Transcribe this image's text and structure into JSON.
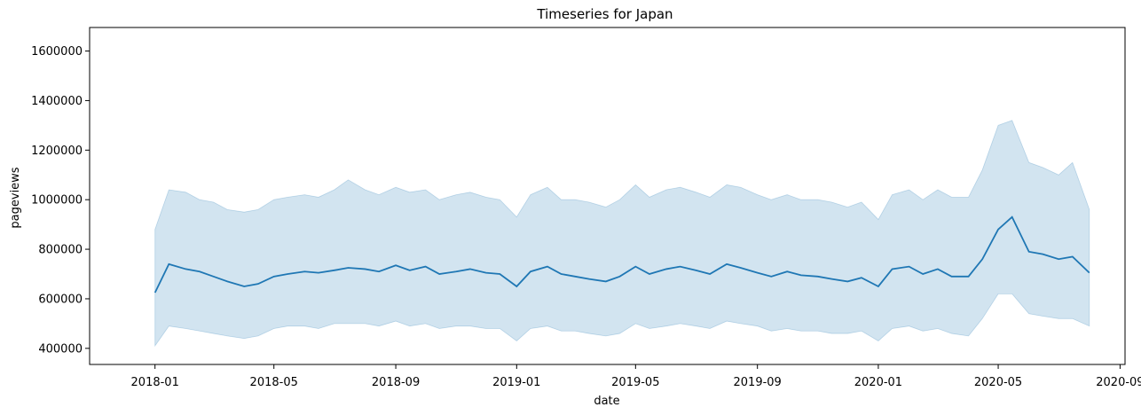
{
  "chart_data": {
    "type": "line",
    "title": "Timeseries for Japan",
    "xlabel": "date",
    "ylabel": "pageviews",
    "xlim": [
      "2017-10-27",
      "2020-09-06"
    ],
    "ylim": [
      335000,
      1695000
    ],
    "x_ticks": [
      "2018-01",
      "2018-05",
      "2018-09",
      "2019-01",
      "2019-05",
      "2019-09",
      "2020-01",
      "2020-05",
      "2020-09"
    ],
    "y_ticks": [
      400000,
      600000,
      800000,
      1000000,
      1200000,
      1400000,
      1600000
    ],
    "legend": "none",
    "grid": false,
    "colors": {
      "line": "#1f77b4",
      "band": "#1f77b4"
    },
    "series": [
      {
        "x": [
          "2018-01-01",
          "2018-01-15",
          "2018-02-01",
          "2018-02-15",
          "2018-03-01",
          "2018-03-15",
          "2018-04-01",
          "2018-04-15",
          "2018-05-01",
          "2018-05-15",
          "2018-06-01",
          "2018-06-15",
          "2018-07-01",
          "2018-07-15",
          "2018-08-01",
          "2018-08-15",
          "2018-09-01",
          "2018-09-15",
          "2018-10-01",
          "2018-10-15",
          "2018-11-01",
          "2018-11-15",
          "2018-12-01",
          "2018-12-15",
          "2019-01-01",
          "2019-01-15",
          "2019-02-01",
          "2019-02-15",
          "2019-03-01",
          "2019-03-15",
          "2019-04-01",
          "2019-04-15",
          "2019-05-01",
          "2019-05-15",
          "2019-06-01",
          "2019-06-15",
          "2019-07-01",
          "2019-07-15",
          "2019-08-01",
          "2019-08-15",
          "2019-09-01",
          "2019-09-15",
          "2019-10-01",
          "2019-10-15",
          "2019-11-01",
          "2019-11-15",
          "2019-12-01",
          "2019-12-15",
          "2020-01-01",
          "2020-01-15",
          "2020-02-01",
          "2020-02-15",
          "2020-03-01",
          "2020-03-15",
          "2020-04-01",
          "2020-04-15",
          "2020-05-01",
          "2020-05-15",
          "2020-06-01",
          "2020-06-15",
          "2020-07-01",
          "2020-07-15",
          "2020-08-01"
        ],
        "values": [
          625000,
          740000,
          720000,
          710000,
          690000,
          670000,
          650000,
          660000,
          690000,
          700000,
          710000,
          705000,
          715000,
          725000,
          720000,
          710000,
          735000,
          715000,
          730000,
          700000,
          710000,
          720000,
          705000,
          700000,
          650000,
          710000,
          730000,
          700000,
          690000,
          680000,
          670000,
          690000,
          730000,
          700000,
          720000,
          730000,
          715000,
          700000,
          740000,
          725000,
          705000,
          690000,
          710000,
          695000,
          690000,
          680000,
          670000,
          685000,
          650000,
          720000,
          730000,
          700000,
          720000,
          690000,
          690000,
          760000,
          880000,
          930000,
          790000,
          780000,
          760000,
          770000,
          705000
        ],
        "band_low": [
          410000,
          490000,
          480000,
          470000,
          460000,
          450000,
          440000,
          450000,
          480000,
          490000,
          490000,
          480000,
          500000,
          500000,
          500000,
          490000,
          510000,
          490000,
          500000,
          480000,
          490000,
          490000,
          480000,
          480000,
          430000,
          480000,
          490000,
          470000,
          470000,
          460000,
          450000,
          460000,
          500000,
          480000,
          490000,
          500000,
          490000,
          480000,
          510000,
          500000,
          490000,
          470000,
          480000,
          470000,
          470000,
          460000,
          460000,
          470000,
          430000,
          480000,
          490000,
          470000,
          480000,
          460000,
          450000,
          520000,
          620000,
          620000,
          540000,
          530000,
          520000,
          520000,
          490000
        ],
        "band_high": [
          880000,
          1040000,
          1030000,
          1000000,
          990000,
          960000,
          950000,
          960000,
          1000000,
          1010000,
          1020000,
          1010000,
          1040000,
          1080000,
          1040000,
          1020000,
          1050000,
          1030000,
          1040000,
          1000000,
          1020000,
          1030000,
          1010000,
          1000000,
          930000,
          1020000,
          1050000,
          1000000,
          1000000,
          990000,
          970000,
          1000000,
          1060000,
          1010000,
          1040000,
          1050000,
          1030000,
          1010000,
          1060000,
          1050000,
          1020000,
          1000000,
          1020000,
          1000000,
          1000000,
          990000,
          970000,
          990000,
          920000,
          1020000,
          1040000,
          1000000,
          1040000,
          1010000,
          1010000,
          1120000,
          1300000,
          1320000,
          1150000,
          1130000,
          1100000,
          1150000,
          960000
        ]
      }
    ]
  }
}
